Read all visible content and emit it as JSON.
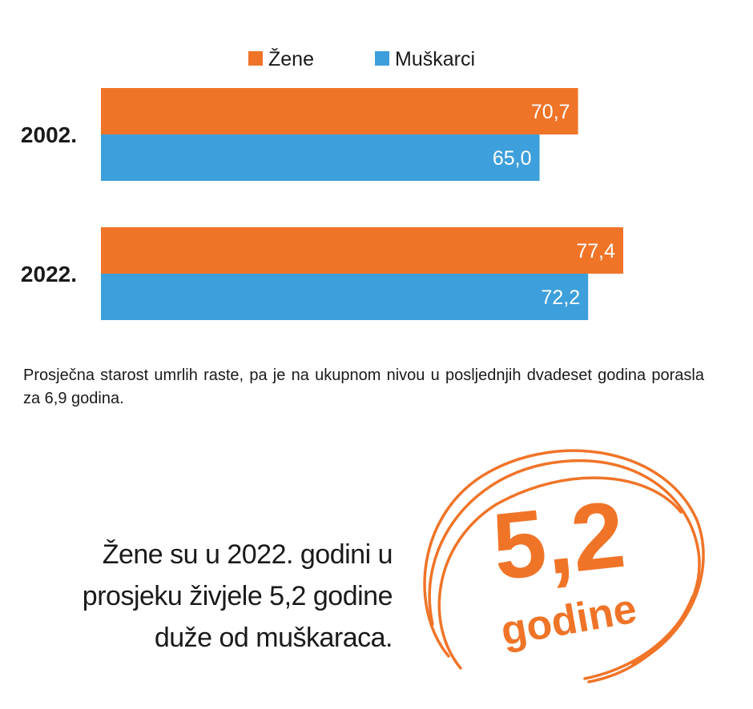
{
  "chart_data": {
    "type": "bar",
    "orientation": "horizontal",
    "categories": [
      "2002.",
      "2022."
    ],
    "series": [
      {
        "name": "Žene",
        "color": "#f07428",
        "values": [
          70.7,
          77.4
        ],
        "labels": [
          "70,7",
          "77,4"
        ]
      },
      {
        "name": "Muškarci",
        "color": "#3d9fdb",
        "values": [
          65.0,
          72.2
        ],
        "labels": [
          "65,0",
          "72,2"
        ]
      }
    ],
    "legend_position": "top-center",
    "grid": false
  },
  "caption": "Prosječna starost umrlih raste, pa je na ukupnom nivou u posljednjih dvadeset godina porasla za 6,9 godina.",
  "callout": {
    "lines": [
      "Žene su u 2022. godini u",
      "prosjeku živjele 5,2 godine",
      "duže od muškaraca."
    ]
  },
  "stamp": {
    "value": "5,2",
    "unit": "godine",
    "color": "#f07428"
  }
}
